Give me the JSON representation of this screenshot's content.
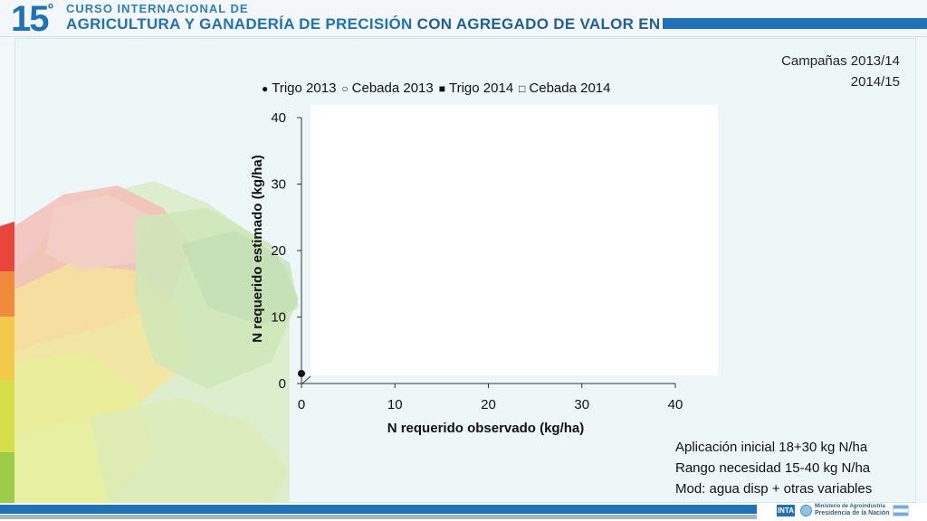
{
  "header": {
    "number": "15",
    "ordinal": "º",
    "line1": "CURSO INTERNACIONAL DE",
    "line2_part1": "AGRICULTURA Y GANADERÍA DE PRECISIÓN",
    "line2_part2": "CON AGREGADO DE VALOR EN ORIGEN"
  },
  "notes": {
    "top": [
      "Campañas 2013/14",
      "2014/15"
    ],
    "bottom": [
      "Aplicación inicial 18+30 kg N/ha",
      "Rango necesidad 15-40 kg N/ha",
      "Mod: agua disp + otras variables"
    ]
  },
  "footer": {
    "inta": "INTA",
    "ministry_line1": "Ministerio de Agroindustria",
    "ministry_line2": "Presidencia de la Nación"
  },
  "colors": {
    "brand_blue": "#1d72b8",
    "marker": "#111111"
  },
  "chart_data": {
    "type": "scatter",
    "title": "",
    "xlabel": "N requerido observado (kg/ha)",
    "ylabel": "N requerido estimado (kg/ha)",
    "xlim": [
      0,
      40
    ],
    "ylim": [
      0,
      40
    ],
    "xticks": [
      "0",
      "10",
      "20",
      "30",
      "40"
    ],
    "yticks": [
      "0",
      "10",
      "20",
      "30",
      "40"
    ],
    "legend_position": "top",
    "grid": false,
    "series": [
      {
        "name": "Trigo 2013",
        "symbol": "●",
        "marker": "filled-circle",
        "points": [
          [
            0,
            1.5
          ]
        ]
      },
      {
        "name": "Cebada 2013",
        "symbol": "○",
        "marker": "open-circle",
        "points": []
      },
      {
        "name": "Trigo 2014",
        "symbol": "■",
        "marker": "filled-square",
        "points": []
      },
      {
        "name": "Cebada 2014",
        "symbol": "□",
        "marker": "open-square",
        "points": []
      }
    ]
  }
}
